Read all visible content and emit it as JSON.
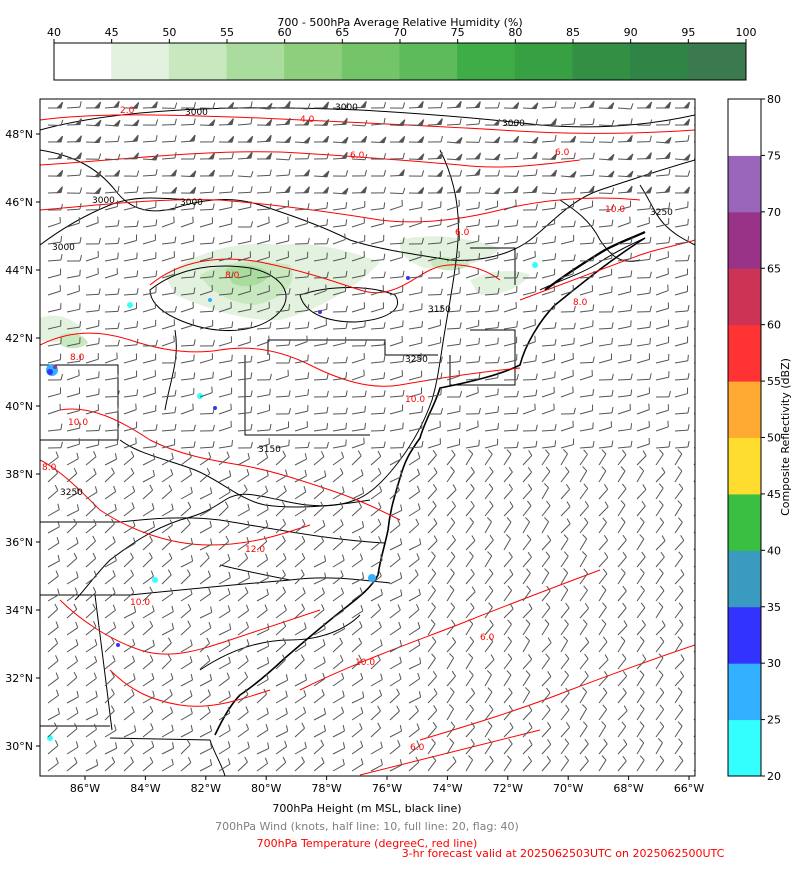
{
  "rh_colorbar": {
    "title": "700 - 500hPa Average Relative Humidity (%)",
    "ticks": [
      "40",
      "45",
      "50",
      "55",
      "60",
      "65",
      "70",
      "75",
      "80",
      "85",
      "90",
      "95",
      "100"
    ],
    "colors": [
      "#ffffff",
      "#e3f2df",
      "#c8e8c0",
      "#aadc9d",
      "#8ecf7e",
      "#74c46a",
      "#5dbb5c",
      "#3fad47",
      "#36a043",
      "#338f44",
      "#2f8446",
      "#3a7a4e"
    ]
  },
  "refl_colorbar": {
    "label": "Composite Reflectivity (dBZ)",
    "ticks": [
      "20",
      "25",
      "30",
      "35",
      "40",
      "45",
      "50",
      "55",
      "60",
      "65",
      "70",
      "75",
      "80"
    ],
    "colors": [
      "#33ffff",
      "#33b0ff",
      "#3333ff",
      "#3a9abf",
      "#3bbf43",
      "#ffdd2e",
      "#ffaa33",
      "#ff3333",
      "#cc3355",
      "#993388",
      "#9966bb",
      "#ffffff"
    ]
  },
  "map": {
    "lat_labels": [
      "48°N",
      "46°N",
      "44°N",
      "42°N",
      "40°N",
      "38°N",
      "36°N",
      "34°N",
      "32°N",
      "30°N"
    ],
    "lon_labels": [
      "86°W",
      "84°W",
      "82°W",
      "80°W",
      "78°W",
      "76°W",
      "74°W",
      "72°W",
      "70°W",
      "68°W",
      "66°W"
    ],
    "height_labels": [
      "3000",
      "3000",
      "3000",
      "3000",
      "3000",
      "3000",
      "3150",
      "3150",
      "3250",
      "3250",
      "3250"
    ],
    "temp_labels": [
      "2.0",
      "4.0",
      "6.0",
      "6.0",
      "8.0",
      "6.0",
      "10.0",
      "10.0",
      "10.0",
      "10.0",
      "12.0",
      "8.0",
      "6.0",
      "8.0",
      "10.0",
      "8.0",
      "6.0"
    ]
  },
  "footer": {
    "height": "700hPa Height (m MSL, black line)",
    "wind": "700hPa Wind (knots, half line: 10, full line: 20, flag: 40)",
    "temp": "700hPa Temperature (degreeC, red line)",
    "valid": "3-hr forecast valid at 2025062503UTC on 2025062500UTC"
  }
}
